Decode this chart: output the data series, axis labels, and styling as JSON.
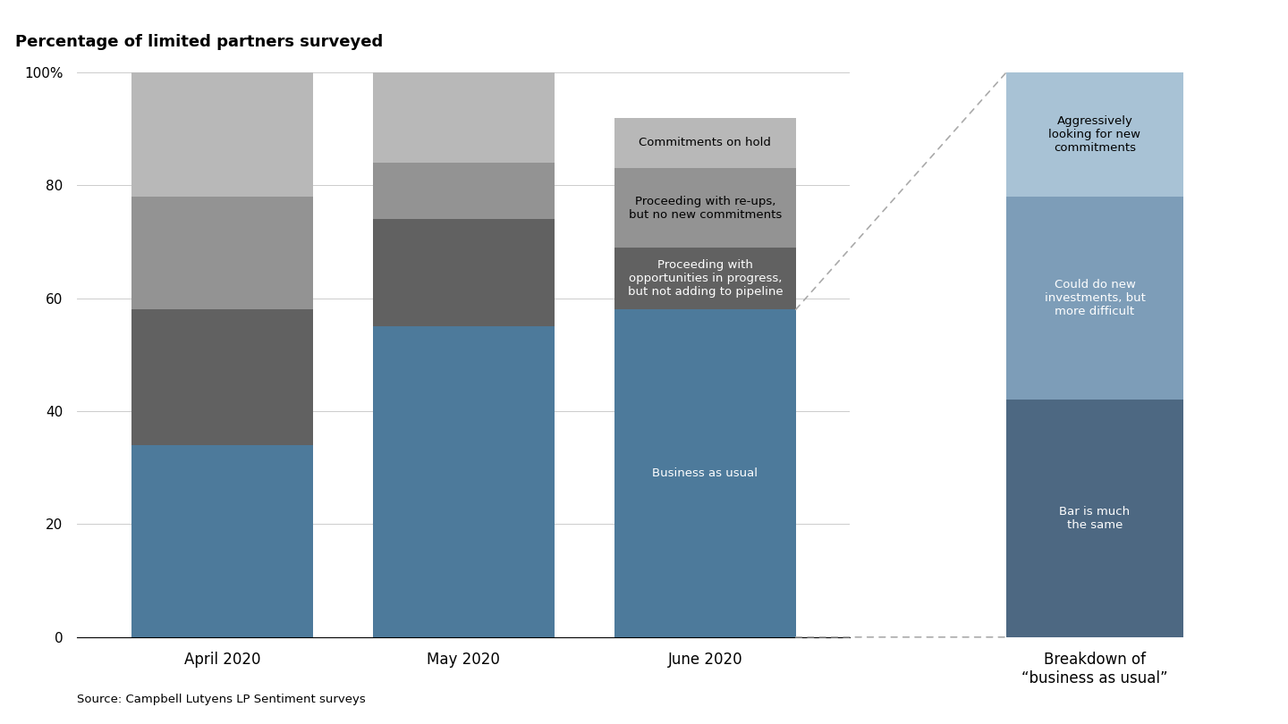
{
  "title": "Percentage of limited partners surveyed",
  "source": "Source: Campbell Lutyens LP Sentiment surveys",
  "categories": [
    "April 2020",
    "May 2020",
    "June 2020"
  ],
  "breakdown_label": "Breakdown of\n“business as usual”",
  "stacked_data": {
    "Business as usual": [
      34,
      55,
      58
    ],
    "Proceeding with opportunities in progress, but not adding to pipeline": [
      24,
      19,
      11
    ],
    "Proceeding with re-ups, but no new commitments": [
      20,
      10,
      14
    ],
    "Commitments on hold": [
      22,
      16,
      9
    ]
  },
  "breakdown_data": {
    "Bar is much the same": 42,
    "Could do new investments, but more difficult": 36,
    "Aggressively looking for new commitments": 22
  },
  "colors": {
    "Business as usual": "#4d7a9b",
    "Proceeding with opportunities in progress, but not adding to pipeline": "#616161",
    "Proceeding with re-ups, but no new commitments": "#939393",
    "Commitments on hold": "#b8b8b8",
    "Bar is much the same": "#4d6882",
    "Could do new investments, but more difficult": "#7d9db8",
    "Aggressively looking for new commitments": "#a8c2d5"
  },
  "ylim": [
    0,
    100
  ],
  "yticks": [
    0,
    20,
    40,
    60,
    80,
    100
  ],
  "ytick_labels": [
    "0",
    "20",
    "40",
    "60",
    "80",
    "100%"
  ],
  "bar_width": 0.75,
  "breakdown_bar_width": 0.75
}
